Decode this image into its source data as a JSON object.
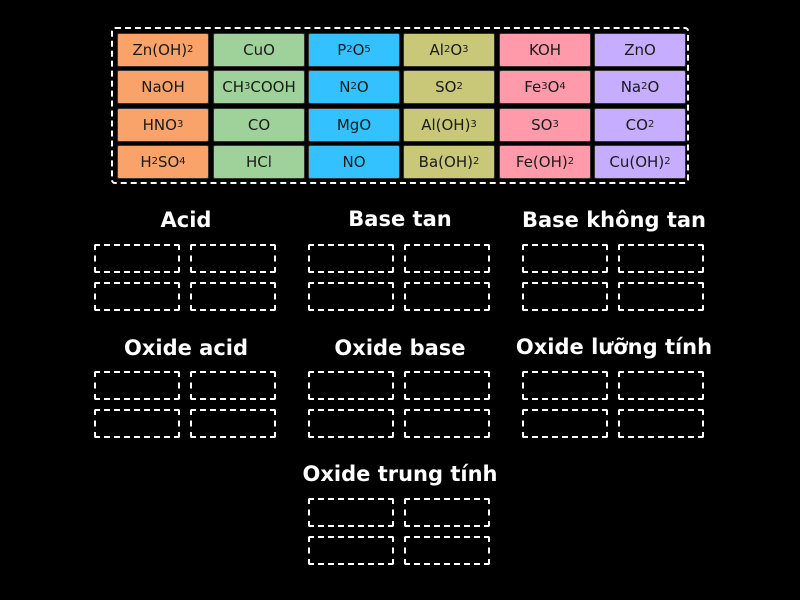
{
  "tile_bank": {
    "rows": [
      [
        {
          "parts": [
            [
              "Zn(OH)",
              ""
            ],
            [
              "2",
              "sub"
            ]
          ],
          "color": "#f9a36b"
        },
        {
          "parts": [
            [
              "CuO",
              ""
            ]
          ],
          "color": "#9fd29a"
        },
        {
          "parts": [
            [
              "P",
              ""
            ],
            [
              "2",
              "sub"
            ],
            [
              "O",
              ""
            ],
            [
              "5",
              "sub"
            ]
          ],
          "color": "#33c2ff"
        },
        {
          "parts": [
            [
              "Al",
              ""
            ],
            [
              "2",
              "sub"
            ],
            [
              "O",
              ""
            ],
            [
              "3",
              "sub"
            ]
          ],
          "color": "#c9c879"
        },
        {
          "parts": [
            [
              "KOH",
              ""
            ]
          ],
          "color": "#ff9aab"
        },
        {
          "parts": [
            [
              "ZnO",
              ""
            ]
          ],
          "color": "#c6adff"
        }
      ],
      [
        {
          "parts": [
            [
              "NaOH",
              ""
            ]
          ],
          "color": "#f9a36b"
        },
        {
          "parts": [
            [
              "CH",
              ""
            ],
            [
              "3",
              "sub"
            ],
            [
              "COOH",
              ""
            ]
          ],
          "color": "#9fd29a"
        },
        {
          "parts": [
            [
              "N",
              ""
            ],
            [
              "2",
              "sub"
            ],
            [
              "O",
              ""
            ]
          ],
          "color": "#33c2ff"
        },
        {
          "parts": [
            [
              "SO",
              ""
            ],
            [
              "2",
              "sub"
            ]
          ],
          "color": "#c9c879"
        },
        {
          "parts": [
            [
              "Fe",
              ""
            ],
            [
              "3",
              "sub"
            ],
            [
              "O",
              ""
            ],
            [
              "4",
              "sub"
            ]
          ],
          "color": "#ff9aab"
        },
        {
          "parts": [
            [
              "Na",
              ""
            ],
            [
              "2",
              "sub"
            ],
            [
              "O",
              ""
            ]
          ],
          "color": "#c6adff"
        }
      ],
      [
        {
          "parts": [
            [
              "HNO",
              ""
            ],
            [
              "3",
              "sub"
            ]
          ],
          "color": "#f9a36b"
        },
        {
          "parts": [
            [
              "CO",
              ""
            ]
          ],
          "color": "#9fd29a"
        },
        {
          "parts": [
            [
              "MgO",
              ""
            ]
          ],
          "color": "#33c2ff"
        },
        {
          "parts": [
            [
              "Al(OH)",
              ""
            ],
            [
              "3",
              "sub"
            ]
          ],
          "color": "#c9c879"
        },
        {
          "parts": [
            [
              "SO",
              ""
            ],
            [
              "3",
              "sub"
            ]
          ],
          "color": "#ff9aab"
        },
        {
          "parts": [
            [
              "CO",
              ""
            ],
            [
              "2",
              "sub"
            ]
          ],
          "color": "#c6adff"
        }
      ],
      [
        {
          "parts": [
            [
              "H",
              ""
            ],
            [
              "2",
              "sub"
            ],
            [
              "SO",
              ""
            ],
            [
              "4",
              "sub"
            ]
          ],
          "color": "#f9a36b"
        },
        {
          "parts": [
            [
              "HCl",
              ""
            ]
          ],
          "color": "#9fd29a"
        },
        {
          "parts": [
            [
              "NO",
              ""
            ]
          ],
          "color": "#33c2ff"
        },
        {
          "parts": [
            [
              "Ba(OH)",
              ""
            ],
            [
              "2",
              "sub"
            ]
          ],
          "color": "#c9c879"
        },
        {
          "parts": [
            [
              "Fe(OH)",
              ""
            ],
            [
              "2",
              "sub"
            ]
          ],
          "color": "#ff9aab"
        },
        {
          "parts": [
            [
              "Cu(OH)",
              ""
            ],
            [
              "2",
              "sub"
            ]
          ],
          "color": "#c6adff"
        }
      ]
    ]
  },
  "groups": [
    {
      "title": "Acid",
      "slot_count": 4
    },
    {
      "title": "Base tan",
      "slot_count": 4
    },
    {
      "title": "Base không tan",
      "slot_count": 4
    },
    {
      "title": "Oxide acid",
      "slot_count": 4
    },
    {
      "title": "Oxide base",
      "slot_count": 4
    },
    {
      "title": "Oxide lưỡng tính",
      "slot_count": 4
    },
    {
      "title": "Oxide trung tính",
      "slot_count": 4
    }
  ]
}
